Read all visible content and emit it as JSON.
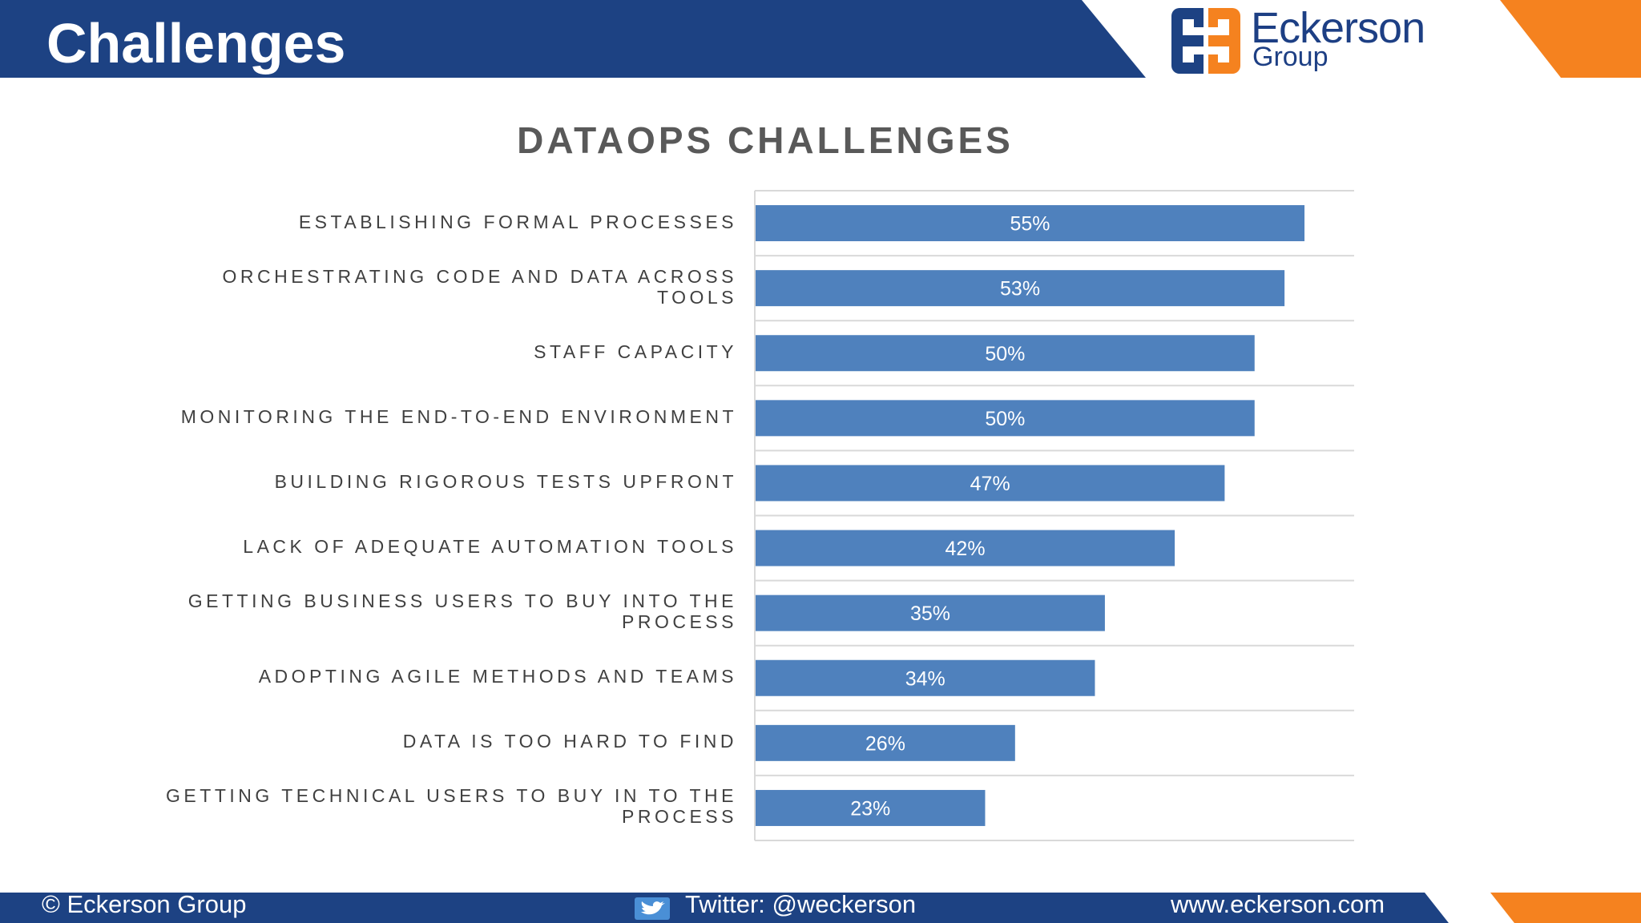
{
  "header": {
    "title": "Challenges",
    "logo_line1": "Eckerson",
    "logo_line2": "Group"
  },
  "colors": {
    "header_blue": "#1d4283",
    "orange": "#f5821f",
    "bar_blue": "#4f81bd",
    "grid": "#d9d9d9"
  },
  "footer": {
    "copyright": "© Eckerson Group",
    "twitter": "Twitter: @weckerson",
    "website": "www.eckerson.com"
  },
  "chart_data": {
    "type": "bar",
    "orientation": "horizontal",
    "title": "DATAOPS CHALLENGES",
    "xlabel": "",
    "ylabel": "",
    "xlim": [
      0,
      60
    ],
    "grid": true,
    "categories": [
      "ESTABLISHING FORMAL PROCESSES",
      "ORCHESTRATING CODE AND DATA ACROSS TOOLS",
      "STAFF CAPACITY",
      "MONITORING THE END-TO-END ENVIRONMENT",
      "BUILDING RIGOROUS TESTS UPFRONT",
      "LACK OF ADEQUATE AUTOMATION TOOLS",
      "GETTING BUSINESS USERS TO BUY INTO THE PROCESS",
      "ADOPTING AGILE METHODS AND TEAMS",
      "DATA IS TOO HARD TO FIND",
      "GETTING TECHNICAL USERS TO BUY IN TO THE PROCESS"
    ],
    "values": [
      55,
      53,
      50,
      50,
      47,
      42,
      35,
      34,
      26,
      23
    ],
    "value_labels": [
      "55%",
      "53%",
      "50%",
      "50%",
      "47%",
      "42%",
      "35%",
      "34%",
      "26%",
      "23%"
    ]
  }
}
